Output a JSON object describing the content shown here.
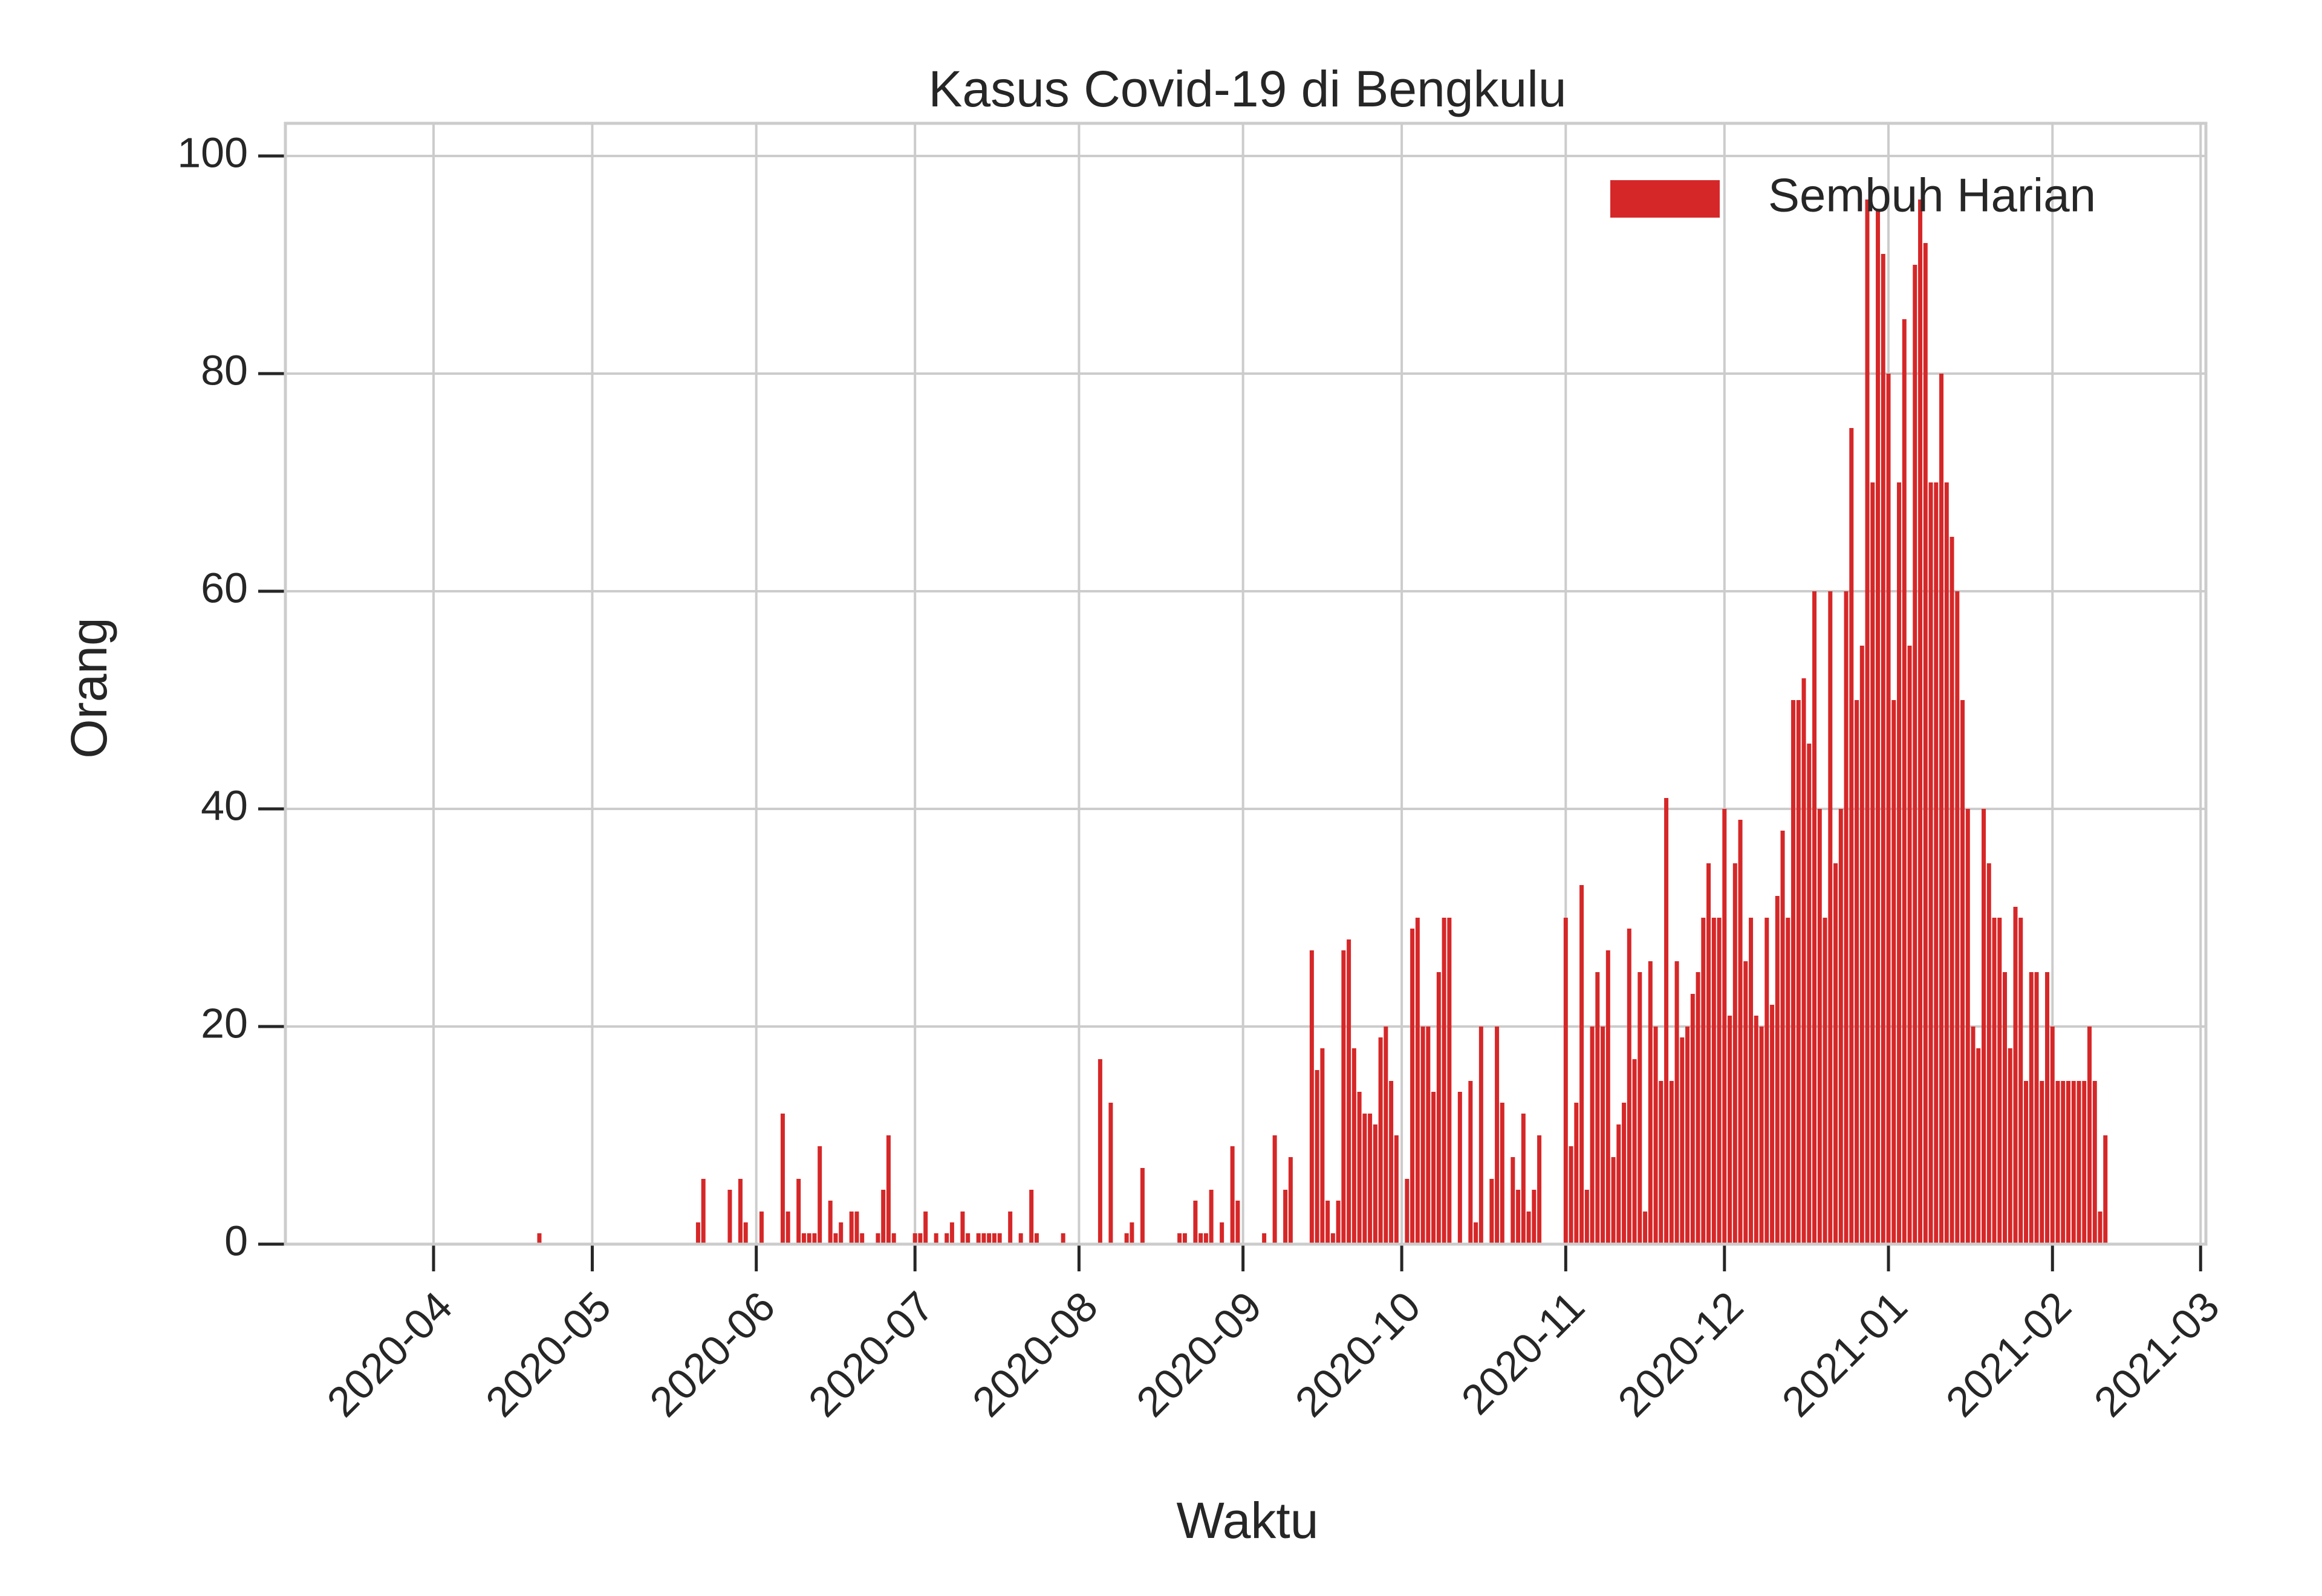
{
  "chart_data": {
    "type": "bar",
    "title": "Kasus Covid-19 di Bengkulu",
    "xlabel": "Waktu",
    "ylabel": "Orang",
    "legend": "upper right",
    "grid": true,
    "xlim": [
      18325,
      18688
    ],
    "ylim": [
      0,
      103
    ],
    "yticks": [
      0,
      20,
      40,
      60,
      80,
      100
    ],
    "xticks": [
      {
        "value": 18353,
        "label": "2020-04"
      },
      {
        "value": 18383,
        "label": "2020-05"
      },
      {
        "value": 18414,
        "label": "2020-06"
      },
      {
        "value": 18444,
        "label": "2020-07"
      },
      {
        "value": 18475,
        "label": "2020-08"
      },
      {
        "value": 18506,
        "label": "2020-09"
      },
      {
        "value": 18536,
        "label": "2020-10"
      },
      {
        "value": 18567,
        "label": "2020-11"
      },
      {
        "value": 18597,
        "label": "2020-12"
      },
      {
        "value": 18628,
        "label": "2021-01"
      },
      {
        "value": 18659,
        "label": "2021-02"
      },
      {
        "value": 18687,
        "label": "2021-03"
      }
    ],
    "x": [
      18373,
      18403,
      18404,
      18409,
      18411,
      18412,
      18415,
      18419,
      18420,
      18422,
      18423,
      18424,
      18425,
      18426,
      18428,
      18429,
      18430,
      18432,
      18433,
      18434,
      18437,
      18438,
      18439,
      18440,
      18444,
      18445,
      18446,
      18448,
      18450,
      18451,
      18453,
      18454,
      18456,
      18457,
      18458,
      18459,
      18460,
      18462,
      18464,
      18466,
      18467,
      18472,
      18479,
      18481,
      18484,
      18485,
      18487,
      18494,
      18495,
      18497,
      18498,
      18499,
      18500,
      18502,
      18504,
      18505,
      18510,
      18512,
      18514,
      18515,
      18519,
      18520,
      18521,
      18522,
      18523,
      18524,
      18525,
      18526,
      18527,
      18528,
      18529,
      18530,
      18531,
      18532,
      18533,
      18534,
      18535,
      18536,
      18537,
      18538,
      18539,
      18540,
      18541,
      18542,
      18543,
      18544,
      18545,
      18546,
      18547,
      18548,
      18549,
      18550,
      18551,
      18552,
      18553,
      18554,
      18555,
      18556,
      18557,
      18558,
      18559,
      18560,
      18561,
      18562,
      18563,
      18564,
      18565,
      18566,
      18567,
      18568,
      18569,
      18570,
      18571,
      18572,
      18573,
      18574,
      18575,
      18576,
      18577,
      18578,
      18579,
      18580,
      18581,
      18582,
      18583,
      18584,
      18585,
      18586,
      18587,
      18588,
      18589,
      18590,
      18591,
      18592,
      18593,
      18594,
      18595,
      18596,
      18597,
      18598,
      18599,
      18600,
      18601,
      18602,
      18603,
      18604,
      18605,
      18606,
      18607,
      18608,
      18609,
      18610,
      18611,
      18612,
      18613,
      18614,
      18615,
      18616,
      18617,
      18618,
      18619,
      18620,
      18621,
      18622,
      18623,
      18624,
      18625,
      18626,
      18627,
      18628,
      18629,
      18630,
      18631,
      18632,
      18633,
      18634,
      18635,
      18636,
      18637,
      18638,
      18639,
      18640,
      18641,
      18642,
      18643,
      18644,
      18645,
      18646,
      18647,
      18648,
      18649,
      18650,
      18651,
      18652,
      18653,
      18654,
      18655,
      18656,
      18657,
      18658,
      18659,
      18660,
      18661,
      18662,
      18663,
      18664,
      18665,
      18666,
      18667,
      18668,
      18669
    ],
    "series": [
      {
        "name": "Sembuh Harian",
        "color": "#d62728",
        "values": [
          1,
          2,
          6,
          5,
          6,
          2,
          3,
          12,
          3,
          6,
          1,
          1,
          1,
          9,
          4,
          1,
          2,
          3,
          3,
          1,
          1,
          5,
          10,
          1,
          1,
          1,
          3,
          1,
          1,
          2,
          3,
          1,
          1,
          1,
          1,
          1,
          1,
          3,
          1,
          5,
          1,
          1,
          17,
          13,
          1,
          2,
          7,
          1,
          1,
          4,
          1,
          1,
          5,
          2,
          9,
          4,
          1,
          10,
          5,
          8,
          27,
          16,
          18,
          4,
          1,
          4,
          27,
          28,
          18,
          14,
          12,
          12,
          11,
          19,
          20,
          15,
          10,
          0,
          6,
          29,
          30,
          20,
          20,
          14,
          25,
          30,
          30,
          0,
          14,
          0,
          15,
          2,
          20,
          0,
          6,
          20,
          13,
          0,
          8,
          5,
          12,
          3,
          5,
          10,
          0,
          0,
          0,
          0,
          30,
          9,
          13,
          33,
          5,
          20,
          25,
          20,
          27,
          8,
          11,
          13,
          29,
          17,
          25,
          3,
          26,
          20,
          15,
          41,
          15,
          26,
          19,
          20,
          23,
          25,
          30,
          35,
          30,
          30,
          40,
          21,
          35,
          39,
          26,
          30,
          21,
          20,
          30,
          22,
          32,
          38,
          30,
          50,
          50,
          52,
          46,
          60,
          40,
          30,
          60,
          35,
          40,
          60,
          75,
          50,
          55,
          96,
          70,
          95,
          91,
          80,
          50,
          70,
          85,
          55,
          90,
          96,
          92,
          70,
          70,
          80,
          70,
          65,
          60,
          50,
          40,
          20,
          18,
          40,
          35,
          30,
          30,
          25,
          18,
          31,
          30,
          15,
          25,
          25,
          15,
          25,
          20,
          15,
          15,
          15,
          15,
          15,
          15,
          20,
          15,
          3,
          10
        ]
      }
    ]
  }
}
